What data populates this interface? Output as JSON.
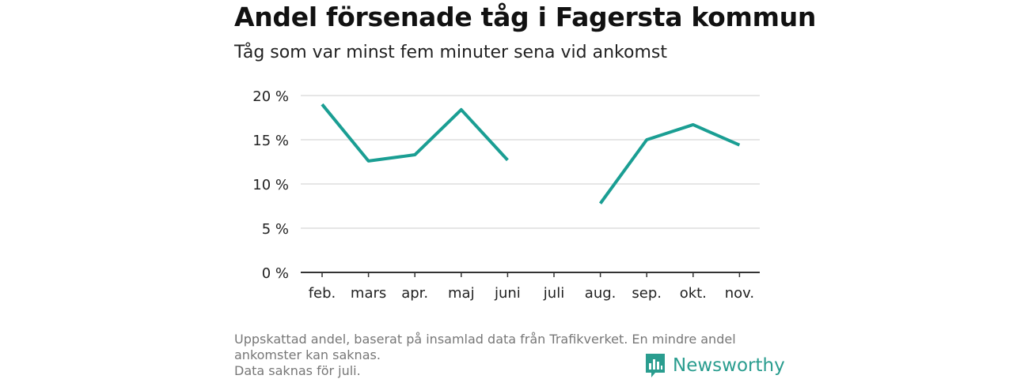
{
  "chart_data": {
    "type": "line",
    "title": "Andel försenade tåg i Fagersta kommun",
    "subtitle": "Tåg som var minst fem minuter sena vid ankomst",
    "categories": [
      "feb.",
      "mars",
      "apr.",
      "maj",
      "juni",
      "juli",
      "aug.",
      "sep.",
      "okt.",
      "nov."
    ],
    "series": [
      {
        "values": [
          19.0,
          12.6,
          13.3,
          18.4,
          12.7,
          null,
          7.8,
          15.0,
          16.7,
          14.4
        ]
      }
    ],
    "ylim": [
      0,
      20
    ],
    "yticks": [
      0,
      5,
      10,
      15,
      20
    ],
    "ytick_labels": [
      "0 %",
      "5 %",
      "10 %",
      "15 %",
      "20 %"
    ],
    "grid": true,
    "line_color": "#1a9e93"
  },
  "footer": {
    "line1": "Uppskattad andel, baserat på insamlad data från Trafikverket. En mindre andel",
    "line2": "ankomster kan saknas.",
    "line3": "Data saknas för juli."
  },
  "brand": {
    "name": "Newsworthy",
    "icon": "newsworthy-logo-icon",
    "color": "#2a9d8f"
  }
}
